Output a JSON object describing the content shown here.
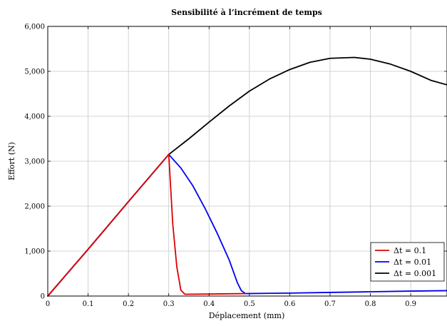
{
  "chart_data": {
    "type": "line",
    "title": "Sensibilité à l’incrément de temps",
    "xlabel": "Déplacement (mm)",
    "ylabel": "Effort (N)",
    "xlim": [
      0,
      0.99
    ],
    "ylim": [
      0,
      6000
    ],
    "x_ticks": [
      0,
      0.1,
      0.2,
      0.3,
      0.4,
      0.5,
      0.6,
      0.7,
      0.8,
      0.9
    ],
    "x_tick_labels": [
      "0",
      "0.1",
      "0.2",
      "0.3",
      "0.4",
      "0.5",
      "0.6",
      "0.7",
      "0.8",
      "0.9"
    ],
    "y_ticks": [
      0,
      1000,
      2000,
      3000,
      4000,
      5000,
      6000
    ],
    "y_tick_labels": [
      "0",
      "1,000",
      "2,000",
      "3,000",
      "4,000",
      "5,000",
      "6,000"
    ],
    "grid": true,
    "legend_position": "bottom-right",
    "series": [
      {
        "name": "Δt = 0.1",
        "color": "#dd0000",
        "points": [
          [
            0,
            0
          ],
          [
            0.1,
            1040
          ],
          [
            0.2,
            2100
          ],
          [
            0.3,
            3150
          ],
          [
            0.31,
            1600
          ],
          [
            0.32,
            650
          ],
          [
            0.33,
            130
          ],
          [
            0.34,
            40
          ],
          [
            0.4,
            45
          ],
          [
            0.49,
            55
          ]
        ]
      },
      {
        "name": "Δt = 0.01",
        "color": "#0000ee",
        "points": [
          [
            0,
            0
          ],
          [
            0.1,
            1040
          ],
          [
            0.2,
            2100
          ],
          [
            0.3,
            3150
          ],
          [
            0.33,
            2850
          ],
          [
            0.36,
            2450
          ],
          [
            0.39,
            1950
          ],
          [
            0.42,
            1400
          ],
          [
            0.45,
            800
          ],
          [
            0.47,
            300
          ],
          [
            0.48,
            120
          ],
          [
            0.49,
            55
          ],
          [
            0.6,
            65
          ],
          [
            0.7,
            80
          ],
          [
            0.8,
            95
          ],
          [
            0.9,
            110
          ],
          [
            0.99,
            120
          ]
        ]
      },
      {
        "name": "Δt = 0.001",
        "color": "#000000",
        "points": [
          [
            0,
            0
          ],
          [
            0.1,
            1040
          ],
          [
            0.2,
            2100
          ],
          [
            0.3,
            3150
          ],
          [
            0.35,
            3500
          ],
          [
            0.4,
            3870
          ],
          [
            0.45,
            4230
          ],
          [
            0.5,
            4560
          ],
          [
            0.55,
            4830
          ],
          [
            0.6,
            5040
          ],
          [
            0.65,
            5200
          ],
          [
            0.7,
            5290
          ],
          [
            0.76,
            5310
          ],
          [
            0.8,
            5270
          ],
          [
            0.85,
            5160
          ],
          [
            0.9,
            5000
          ],
          [
            0.95,
            4800
          ],
          [
            0.99,
            4700
          ]
        ]
      }
    ]
  }
}
